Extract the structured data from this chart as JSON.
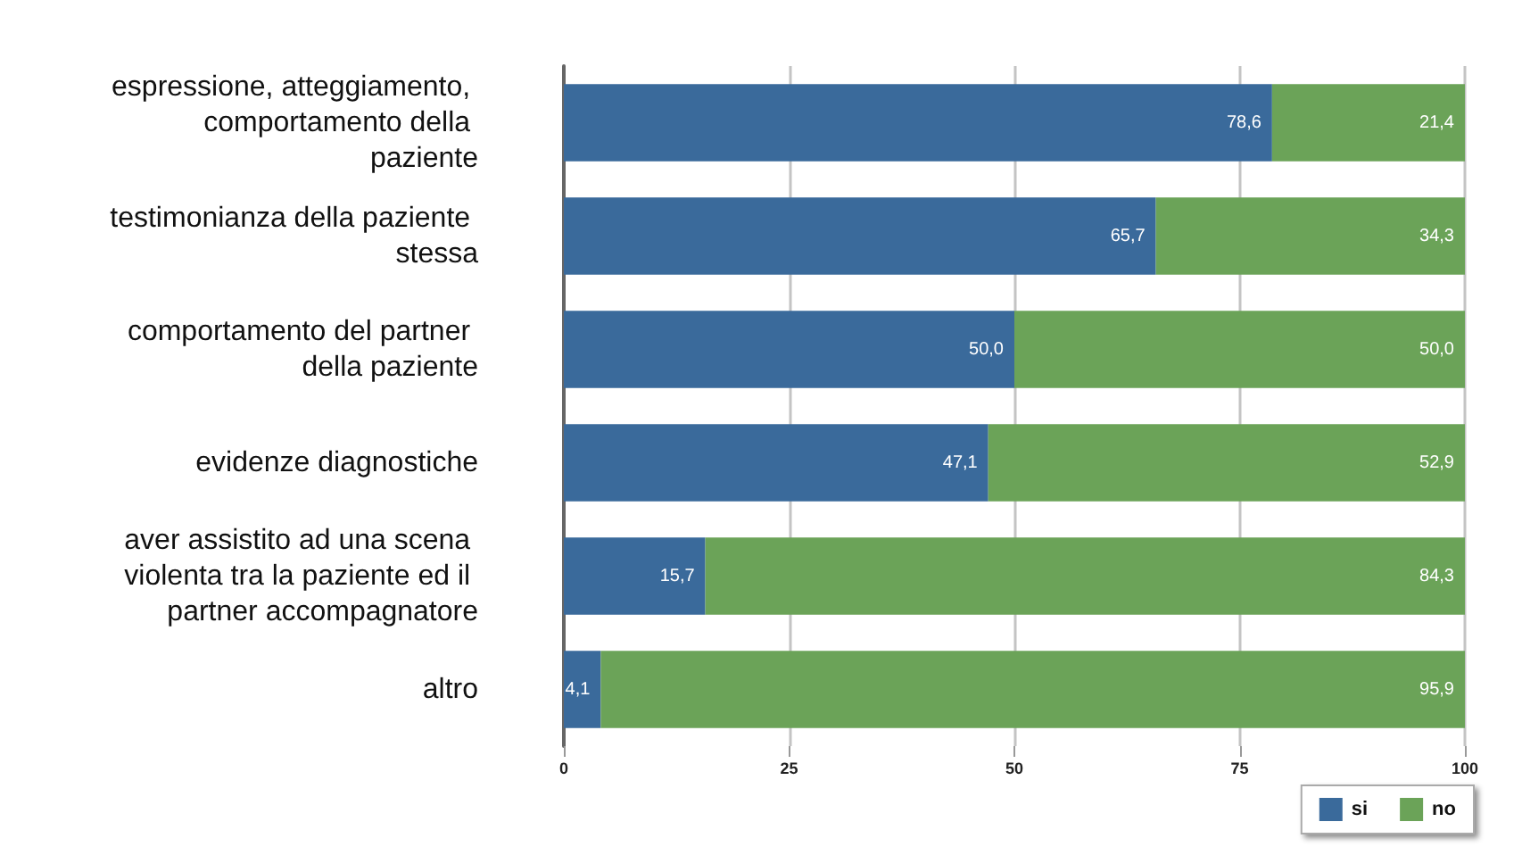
{
  "chart_data": {
    "type": "bar",
    "orientation": "horizontal",
    "stacked": true,
    "categories": [
      "espressione, atteggiamento, comportamento della paziente",
      "testimonianza della paziente stessa",
      "comportamento del partner della paziente",
      "evidenze diagnostiche",
      "aver assistito ad una scena violenta tra la paziente ed il partner accompagnatore",
      "altro"
    ],
    "series": [
      {
        "name": "si",
        "color": "#3a6a9b",
        "values": [
          78.6,
          65.7,
          50.0,
          47.1,
          15.7,
          4.1
        ],
        "value_labels": [
          "78,6",
          "65,7",
          "50,0",
          "47,1",
          "15,7",
          "4,1"
        ]
      },
      {
        "name": "no",
        "color": "#6ba358",
        "values": [
          21.4,
          34.3,
          50.0,
          52.9,
          84.3,
          95.9
        ],
        "value_labels": [
          "21,4",
          "34,3",
          "50,0",
          "52,9",
          "84,3",
          "95,9"
        ]
      }
    ],
    "xlim": [
      0,
      100
    ],
    "xticks": [
      0,
      25,
      50,
      75,
      100
    ],
    "grid": "x",
    "legend": "bottom right"
  }
}
